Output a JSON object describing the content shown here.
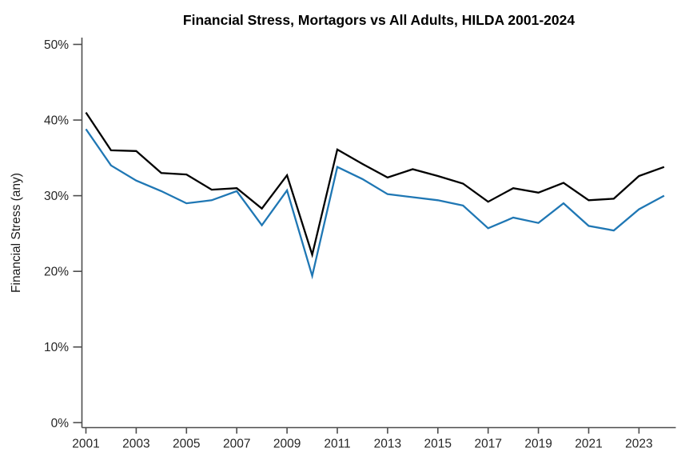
{
  "chart_data": {
    "type": "line",
    "title": "Financial Stress, Mortagors vs All Adults, HILDA 2001-2024",
    "ylabel": "Financial Stress (any)",
    "xlabel": "",
    "x": [
      2001,
      2002,
      2003,
      2004,
      2005,
      2006,
      2007,
      2008,
      2009,
      2010,
      2011,
      2012,
      2013,
      2014,
      2015,
      2016,
      2017,
      2018,
      2019,
      2020,
      2021,
      2022,
      2023,
      2024
    ],
    "series": [
      {
        "name": "Mortagors",
        "color": "#000000",
        "values": [
          41.0,
          36.0,
          35.9,
          33.0,
          32.8,
          30.8,
          31.0,
          28.3,
          32.7,
          22.2,
          36.1,
          34.2,
          32.4,
          33.5,
          32.6,
          31.6,
          29.2,
          31.0,
          30.4,
          31.7,
          29.4,
          29.6,
          32.6,
          33.8
        ]
      },
      {
        "name": "All Adults",
        "color": "#1f77b4",
        "values": [
          38.8,
          34.0,
          32.0,
          30.6,
          29.0,
          29.4,
          30.6,
          26.1,
          30.7,
          19.4,
          33.8,
          32.2,
          30.2,
          29.8,
          29.4,
          28.7,
          25.7,
          27.1,
          26.4,
          29.0,
          26.0,
          25.4,
          28.2,
          30.0
        ]
      }
    ],
    "ylim": [
      0,
      50
    ],
    "xlim": [
      2001,
      2024
    ],
    "yticks": [
      0,
      10,
      20,
      30,
      40,
      50
    ],
    "ytick_labels": [
      "0%",
      "10%",
      "20%",
      "30%",
      "40%",
      "50%"
    ],
    "xticks": [
      2001,
      2003,
      2005,
      2007,
      2009,
      2011,
      2013,
      2015,
      2017,
      2019,
      2021,
      2023
    ],
    "grid": false,
    "legend": "none",
    "axis_color": "#4d4d4d",
    "text_color": "#262626",
    "background": "#ffffff"
  }
}
